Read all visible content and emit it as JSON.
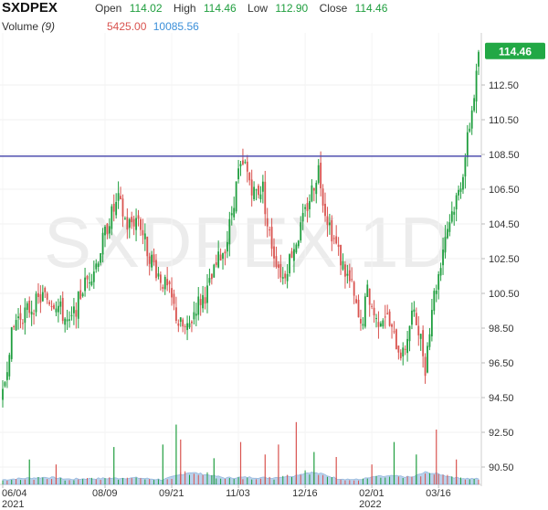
{
  "header": {
    "symbol": "SXDPEX",
    "open_label": "Open",
    "open": "114.02",
    "high_label": "High",
    "high": "114.46",
    "low_label": "Low",
    "low": "112.90",
    "close_label": "Close",
    "close": "114.46",
    "volume_label": "Volume",
    "volume_period": "(9)",
    "volume_value": "5425.00",
    "volume_ma": "10085.56"
  },
  "colors": {
    "up": "#1f9e3e",
    "down": "#d9534f",
    "hline": "#5050b0",
    "volume_area": "#a9c7e8",
    "price_tag": "#22a845"
  },
  "watermark": "SXDPEX,1D",
  "chart_data": {
    "type": "candlestick",
    "ylim": [
      89.5,
      115.5
    ],
    "y_ticks": [
      "90.50",
      "92.50",
      "94.50",
      "96.50",
      "98.50",
      "100.50",
      "102.50",
      "104.50",
      "106.50",
      "108.50",
      "110.50",
      "112.50"
    ],
    "x_ticks": [
      {
        "label": "06/04",
        "sublabel": "2021",
        "index": 0
      },
      {
        "label": "08/09",
        "sublabel": "",
        "index": 46
      },
      {
        "label": "09/21",
        "sublabel": "",
        "index": 76
      },
      {
        "label": "11/03",
        "sublabel": "",
        "index": 106
      },
      {
        "label": "12/16",
        "sublabel": "",
        "index": 136
      },
      {
        "label": "02/01",
        "sublabel": "2022",
        "index": 166
      },
      {
        "label": "03/16",
        "sublabel": "",
        "index": 196
      }
    ],
    "horizontal_line": 108.4,
    "last_price": "114.46",
    "close_path": [
      [
        0,
        94.5
      ],
      [
        3,
        97.5
      ],
      [
        6,
        99.0
      ],
      [
        12,
        99.6
      ],
      [
        18,
        100.3
      ],
      [
        24,
        100.0
      ],
      [
        30,
        98.6
      ],
      [
        36,
        100.8
      ],
      [
        42,
        102.2
      ],
      [
        48,
        104.8
      ],
      [
        52,
        105.8
      ],
      [
        56,
        104.4
      ],
      [
        61,
        104.9
      ],
      [
        65,
        103.0
      ],
      [
        70,
        101.6
      ],
      [
        75,
        100.5
      ],
      [
        79,
        98.8
      ],
      [
        83,
        98.3
      ],
      [
        87,
        99.8
      ],
      [
        92,
        100.6
      ],
      [
        97,
        102.4
      ],
      [
        101,
        103.6
      ],
      [
        103,
        105.2
      ],
      [
        106,
        107.4
      ],
      [
        109,
        107.8
      ],
      [
        113,
        106.3
      ],
      [
        117,
        106.6
      ],
      [
        119,
        104.4
      ],
      [
        122,
        102.8
      ],
      [
        126,
        101.4
      ],
      [
        130,
        102.9
      ],
      [
        134,
        104.2
      ],
      [
        138,
        106.0
      ],
      [
        142,
        107.7
      ],
      [
        145,
        105.3
      ],
      [
        149,
        103.6
      ],
      [
        153,
        102.1
      ],
      [
        157,
        100.8
      ],
      [
        161,
        98.4
      ],
      [
        164,
        100.6
      ],
      [
        168,
        98.9
      ],
      [
        172,
        99.4
      ],
      [
        176,
        97.9
      ],
      [
        180,
        96.9
      ],
      [
        184,
        99.3
      ],
      [
        187,
        98.6
      ],
      [
        190,
        96.3
      ],
      [
        193,
        99.8
      ],
      [
        196,
        101.6
      ],
      [
        199,
        103.9
      ],
      [
        202,
        105.2
      ],
      [
        205,
        106.3
      ],
      [
        207,
        107.6
      ],
      [
        209,
        109.3
      ],
      [
        211,
        111.1
      ],
      [
        213,
        112.9
      ],
      [
        214,
        114.46
      ]
    ],
    "volume_series": [
      [
        0,
        0.3
      ],
      [
        8,
        0.4
      ],
      [
        20,
        0.5
      ],
      [
        30,
        0.35
      ],
      [
        45,
        0.4
      ],
      [
        60,
        0.45
      ],
      [
        72,
        0.3
      ],
      [
        78,
        0.6
      ],
      [
        84,
        0.9
      ],
      [
        92,
        0.7
      ],
      [
        100,
        0.45
      ],
      [
        110,
        0.5
      ],
      [
        120,
        0.45
      ],
      [
        130,
        0.6
      ],
      [
        138,
        0.9
      ],
      [
        144,
        0.75
      ],
      [
        150,
        0.4
      ],
      [
        160,
        0.3
      ],
      [
        168,
        0.55
      ],
      [
        176,
        0.6
      ],
      [
        184,
        0.5
      ],
      [
        190,
        0.9
      ],
      [
        196,
        0.75
      ],
      [
        204,
        0.45
      ],
      [
        214,
        0.35
      ]
    ],
    "volume_spikes": [
      [
        12,
        2.0
      ],
      [
        24,
        1.6
      ],
      [
        50,
        3.0
      ],
      [
        72,
        3.2
      ],
      [
        78,
        4.8
      ],
      [
        80,
        3.6
      ],
      [
        95,
        2.1
      ],
      [
        107,
        3.4
      ],
      [
        118,
        2.4
      ],
      [
        124,
        3.2
      ],
      [
        132,
        5.0
      ],
      [
        140,
        2.6
      ],
      [
        150,
        2.2
      ],
      [
        166,
        1.6
      ],
      [
        176,
        3.4
      ],
      [
        186,
        2.4
      ],
      [
        195,
        4.4
      ],
      [
        204,
        2.0
      ]
    ]
  }
}
